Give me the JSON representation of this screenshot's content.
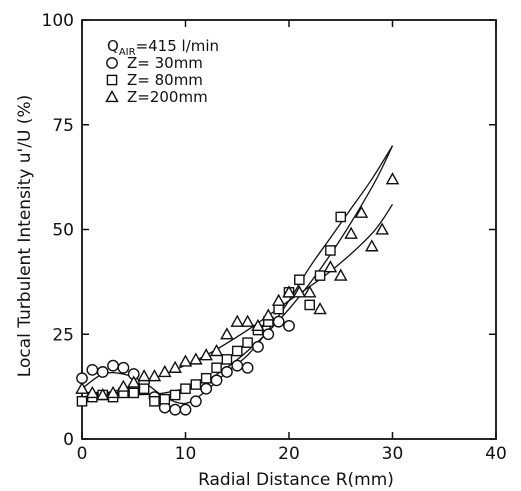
{
  "chart_data": {
    "type": "scatter",
    "xlabel": "Radial Distance R(mm)",
    "ylabel": "Local Turbulent Intensity u'/U (%)",
    "xlim": [
      0,
      40
    ],
    "ylim": [
      0,
      100
    ],
    "x_ticks": [
      0,
      10,
      20,
      30,
      40
    ],
    "y_ticks": [
      0,
      25,
      50,
      75,
      100
    ],
    "grid": false,
    "legend_position": "top-left",
    "legend_title_main": "Q",
    "legend_title_sub": "AIR",
    "legend_title_rest": "=415  l/min",
    "series": [
      {
        "name": "Z=  30mm",
        "marker": "circle",
        "points": [
          [
            0,
            14.5
          ],
          [
            1,
            16.5
          ],
          [
            2,
            16
          ],
          [
            3,
            17.5
          ],
          [
            4,
            17
          ],
          [
            5,
            15.5
          ],
          [
            6,
            13.5
          ],
          [
            7,
            10
          ],
          [
            8,
            7.5
          ],
          [
            9,
            7
          ],
          [
            10,
            7
          ],
          [
            11,
            9
          ],
          [
            12,
            12
          ],
          [
            13,
            14
          ],
          [
            14,
            16
          ],
          [
            15,
            17.5
          ],
          [
            16,
            17
          ],
          [
            17,
            22
          ],
          [
            18,
            25
          ],
          [
            19,
            28
          ],
          [
            20,
            27
          ]
        ],
        "fit": [
          [
            0,
            12
          ],
          [
            2,
            15.5
          ],
          [
            4,
            15.5
          ],
          [
            6,
            13.5
          ],
          [
            8,
            10
          ],
          [
            10,
            8.5
          ],
          [
            12,
            11.5
          ],
          [
            14,
            16
          ],
          [
            16,
            20
          ],
          [
            18,
            26
          ],
          [
            20,
            33
          ],
          [
            22,
            41
          ],
          [
            24,
            48
          ],
          [
            26,
            55
          ],
          [
            28,
            62
          ],
          [
            30,
            70
          ]
        ]
      },
      {
        "name": "Z=  80mm",
        "marker": "square",
        "points": [
          [
            0,
            9
          ],
          [
            1,
            10
          ],
          [
            2,
            10.5
          ],
          [
            3,
            10
          ],
          [
            4,
            11
          ],
          [
            5,
            11
          ],
          [
            6,
            12
          ],
          [
            7,
            9
          ],
          [
            8,
            9.5
          ],
          [
            9,
            10.5
          ],
          [
            10,
            12
          ],
          [
            11,
            13
          ],
          [
            12,
            14.5
          ],
          [
            13,
            17
          ],
          [
            14,
            19
          ],
          [
            15,
            21
          ],
          [
            16,
            23
          ],
          [
            17,
            26
          ],
          [
            18,
            28
          ],
          [
            19,
            31
          ],
          [
            20,
            35
          ],
          [
            21,
            38
          ],
          [
            22,
            32
          ],
          [
            23,
            39
          ],
          [
            24,
            45
          ],
          [
            25,
            53
          ]
        ],
        "fit": [
          [
            0,
            10
          ],
          [
            4,
            10.5
          ],
          [
            8,
            11
          ],
          [
            12,
            14
          ],
          [
            16,
            21
          ],
          [
            20,
            31
          ],
          [
            24,
            44
          ],
          [
            28,
            60
          ],
          [
            30,
            70
          ]
        ]
      },
      {
        "name": "Z=200mm",
        "marker": "triangle",
        "points": [
          [
            0,
            12
          ],
          [
            1,
            11
          ],
          [
            2,
            10.5
          ],
          [
            3,
            11
          ],
          [
            4,
            12.5
          ],
          [
            5,
            13.5
          ],
          [
            6,
            15
          ],
          [
            7,
            15
          ],
          [
            8,
            16
          ],
          [
            9,
            17
          ],
          [
            10,
            18.5
          ],
          [
            11,
            19
          ],
          [
            12,
            20
          ],
          [
            13,
            21
          ],
          [
            14,
            25
          ],
          [
            15,
            28
          ],
          [
            16,
            28
          ],
          [
            17,
            27
          ],
          [
            18,
            29.5
          ],
          [
            19,
            33
          ],
          [
            20,
            35
          ],
          [
            21,
            35
          ],
          [
            22,
            35
          ],
          [
            23,
            31
          ],
          [
            24,
            41
          ],
          [
            25,
            39
          ],
          [
            26,
            49
          ],
          [
            27,
            54
          ],
          [
            28,
            46
          ],
          [
            29,
            50
          ],
          [
            30,
            62
          ]
        ],
        "fit": [
          [
            0,
            10
          ],
          [
            4,
            12
          ],
          [
            8,
            15.5
          ],
          [
            12,
            20
          ],
          [
            16,
            26
          ],
          [
            20,
            33
          ],
          [
            24,
            40
          ],
          [
            28,
            49
          ],
          [
            30,
            56
          ]
        ]
      }
    ]
  }
}
